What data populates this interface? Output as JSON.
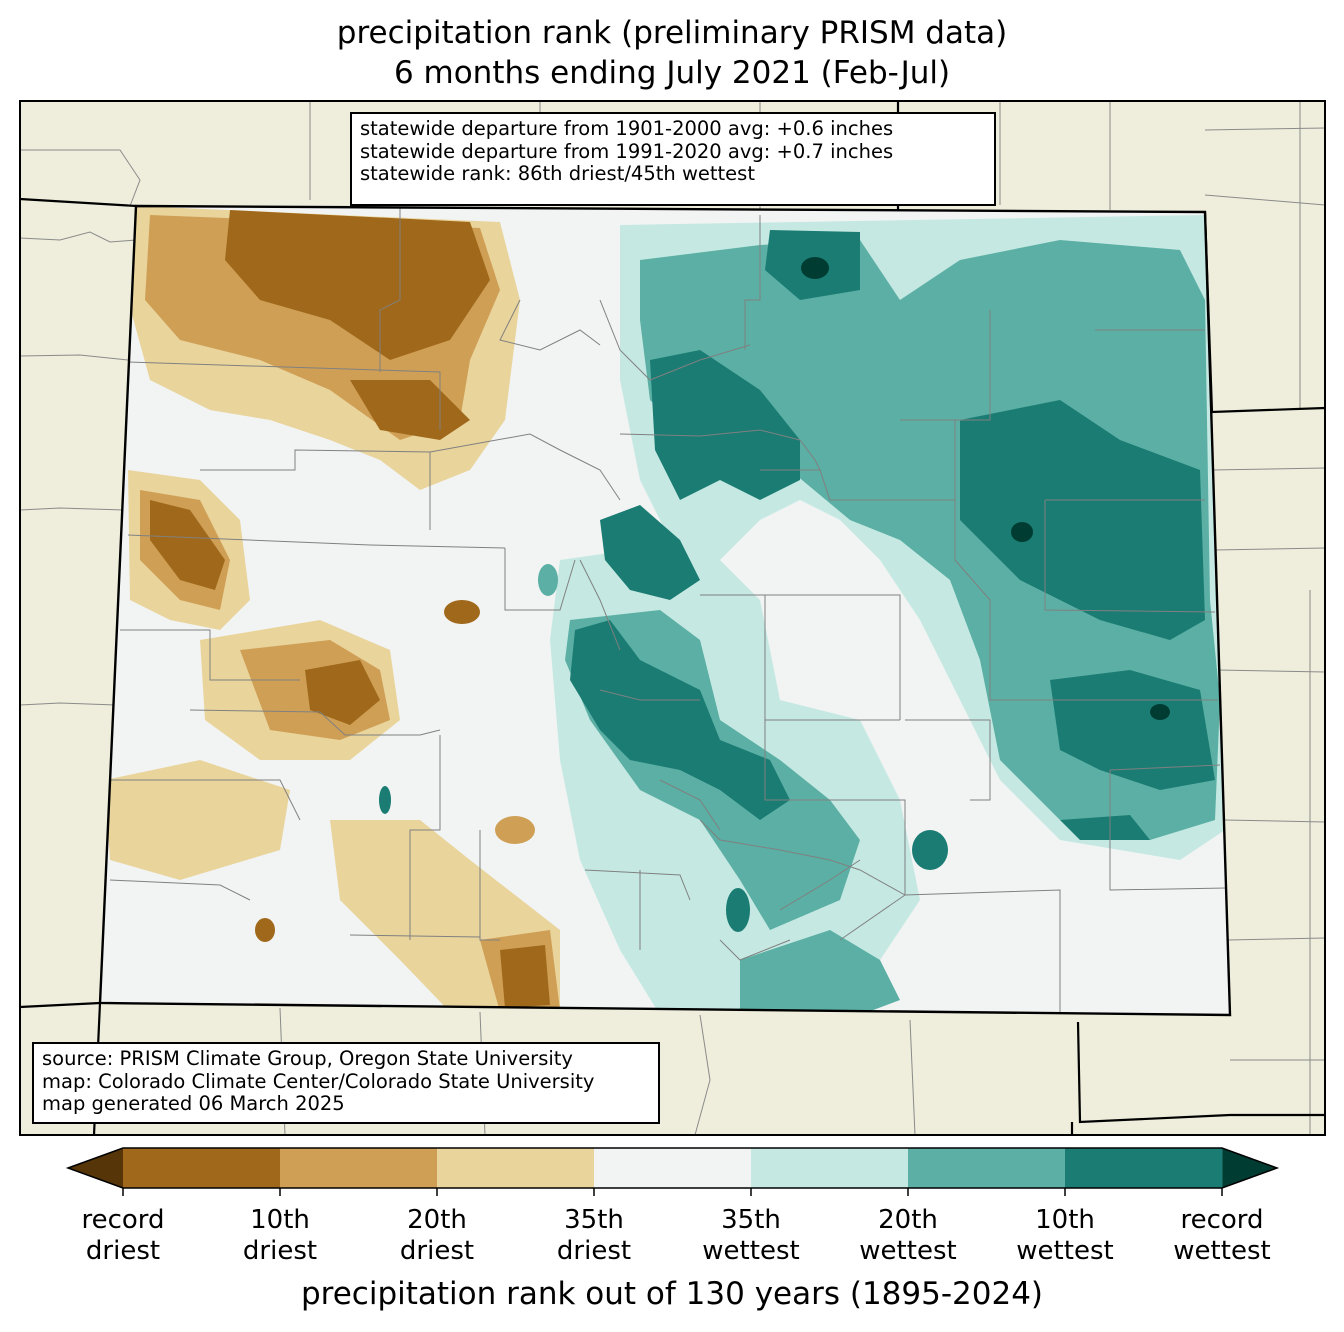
{
  "title_line1": "precipitation rank (preliminary PRISM data)",
  "title_line2": "6 months ending July 2021 (Feb-Jul)",
  "stats": [
    "statewide departure from 1901-2000 avg: +0.6 inches",
    "statewide departure from 1991-2020 avg: +0.7 inches",
    "statewide rank: 86th driest/45th wettest"
  ],
  "source": [
    "source: PRISM Climate Group, Oregon State University",
    "map: Colorado Climate Center/Colorado State University",
    "map generated 06 March 2025"
  ],
  "colorbar": {
    "title": "precipitation rank out of 130 years (1895-2024)",
    "colors": [
      "#a0681a",
      "#cf9f55",
      "#e9d49c",
      "#f2f4f3",
      "#c5e9e2",
      "#5bafa4",
      "#1a7c73"
    ],
    "extend_low_color": "#563508",
    "extend_high_color": "#013c33",
    "tick_labels": [
      [
        "record",
        "driest"
      ],
      [
        "10th",
        "driest"
      ],
      [
        "20th",
        "driest"
      ],
      [
        "35th",
        "driest"
      ],
      [
        "35th",
        "wettest"
      ],
      [
        "20th",
        "wettest"
      ],
      [
        "10th",
        "wettest"
      ],
      [
        "record",
        "wettest"
      ]
    ]
  },
  "map_colors": {
    "background": "#efeedc",
    "state_fill": "#f2f4f3"
  }
}
